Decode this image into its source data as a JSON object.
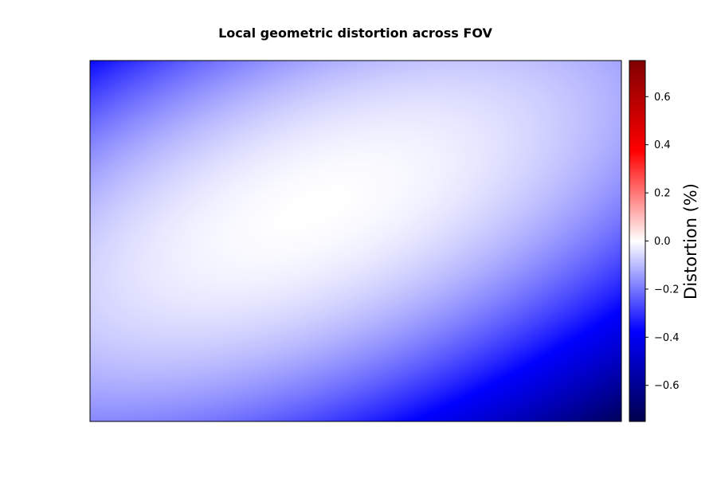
{
  "chart_data": {
    "type": "heatmap",
    "title": "Local geometric distortion across FOV",
    "xlabel": "",
    "ylabel": "",
    "colorbar": {
      "label": "Distortion (%)",
      "range": [
        -0.75,
        0.75
      ],
      "ticks": [
        -0.6,
        -0.4,
        -0.2,
        0.0,
        0.2,
        0.4,
        0.6
      ],
      "tick_labels": [
        "−0.6",
        "−0.4",
        "−0.2",
        "0.0",
        "0.2",
        "0.4",
        "0.6"
      ],
      "colormap": "seismic",
      "colormap_stops": [
        "#00004d",
        "#0000ff",
        "#ffffff",
        "#ff0000",
        "#800000"
      ]
    },
    "field": {
      "model": "anisotropic quadratic bowl",
      "center": [
        0.42,
        0.41
      ],
      "peak_value": 0.0,
      "corner_value": -0.72,
      "orientation": "elongated along the lower-left to upper-right diagonal"
    },
    "grid": false,
    "axes_ticks_visible": false
  }
}
